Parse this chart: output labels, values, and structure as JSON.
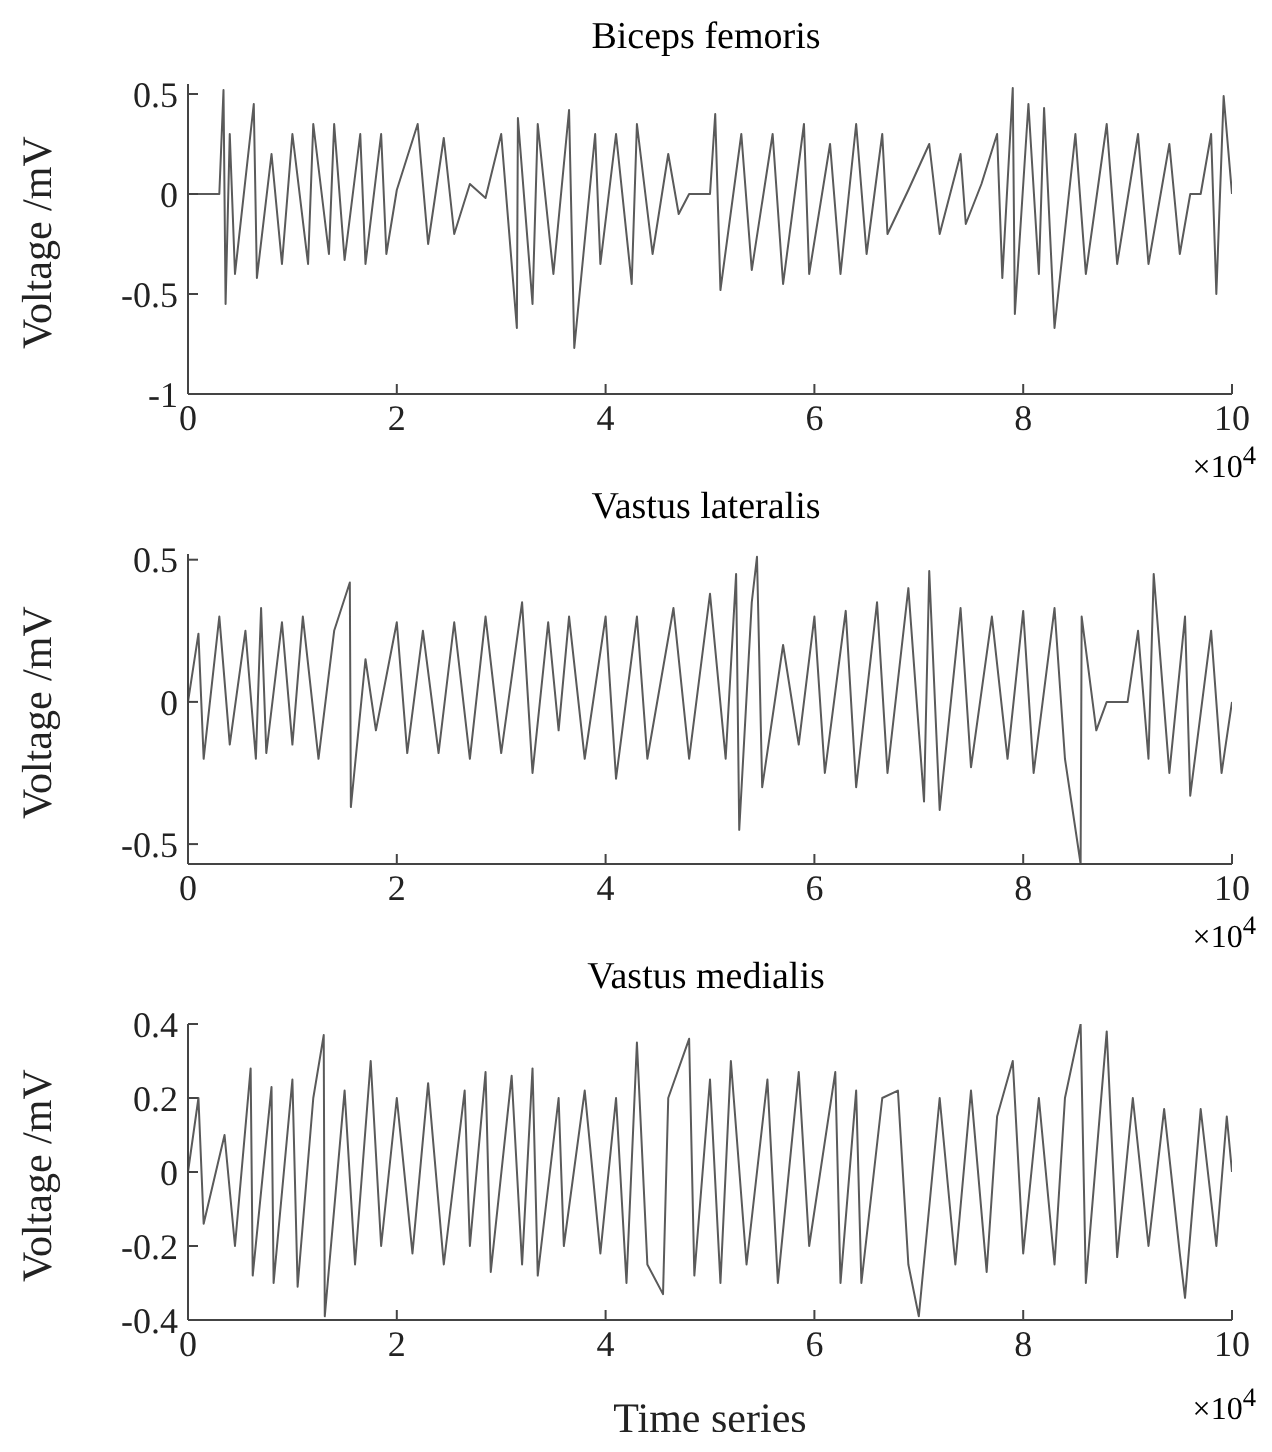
{
  "chart_data": [
    {
      "type": "line",
      "title": "Biceps femoris",
      "ylabel": "Voltage /mV",
      "color": "#5a5a5a",
      "marker": "none",
      "line_style": "solid",
      "grid": false,
      "legend": false,
      "xlim": [
        0,
        10
      ],
      "xticks": [
        0,
        2,
        4,
        6,
        8,
        10
      ],
      "ylim": [
        -1,
        0.55
      ],
      "yticks": [
        -1,
        -0.5,
        0,
        0.5
      ],
      "annotations": [
        "×10$^{4}$"
      ],
      "x": [
        0,
        0.3,
        0.34,
        0.36,
        0.4,
        0.45,
        0.63,
        0.66,
        0.8,
        0.9,
        1,
        1.15,
        1.2,
        1.35,
        1.4,
        1.5,
        1.65,
        1.7,
        1.85,
        1.9,
        2,
        2.2,
        2.3,
        2.45,
        2.55,
        2.7,
        2.85,
        3,
        3.15,
        3.16,
        3.3,
        3.35,
        3.5,
        3.65,
        3.7,
        3.9,
        3.95,
        4.1,
        4.25,
        4.3,
        4.45,
        4.6,
        4.7,
        4.8,
        5,
        5.05,
        5.1,
        5.3,
        5.4,
        5.6,
        5.7,
        5.9,
        5.95,
        6.15,
        6.25,
        6.4,
        6.5,
        6.65,
        6.7,
        6.9,
        7.1,
        7.2,
        7.4,
        7.45,
        7.6,
        7.75,
        7.8,
        7.9,
        7.92,
        8.05,
        8.15,
        8.2,
        8.3,
        8.5,
        8.6,
        8.8,
        8.9,
        9.1,
        9.2,
        9.4,
        9.5,
        9.6,
        9.7,
        9.8,
        9.85,
        9.92,
        10
      ],
      "values": [
        0,
        0,
        0.52,
        -0.55,
        0.3,
        -0.4,
        0.45,
        -0.42,
        0.2,
        -0.35,
        0.3,
        -0.35,
        0.35,
        -0.3,
        0.35,
        -0.33,
        0.3,
        -0.35,
        0.3,
        -0.3,
        0.02,
        0.35,
        -0.25,
        0.28,
        -0.2,
        0.05,
        -0.02,
        0.3,
        -0.67,
        0.38,
        -0.55,
        0.35,
        -0.4,
        0.42,
        -0.77,
        0.3,
        -0.35,
        0.3,
        -0.45,
        0.35,
        -0.3,
        0.2,
        -0.1,
        0,
        0,
        0.4,
        -0.48,
        0.3,
        -0.38,
        0.3,
        -0.45,
        0.35,
        -0.4,
        0.25,
        -0.4,
        0.35,
        -0.3,
        0.3,
        -0.2,
        0.02,
        0.25,
        -0.2,
        0.2,
        -0.15,
        0.05,
        0.3,
        -0.42,
        0.53,
        -0.6,
        0.45,
        -0.4,
        0.43,
        -0.67,
        0.3,
        -0.4,
        0.35,
        -0.35,
        0.3,
        -0.35,
        0.25,
        -0.3,
        0,
        0,
        0.3,
        -0.5,
        0.49,
        0
      ]
    },
    {
      "type": "line",
      "title": "Vastus lateralis",
      "ylabel": "Voltage /mV",
      "color": "#5a5a5a",
      "marker": "none",
      "line_style": "solid",
      "grid": false,
      "legend": false,
      "xlim": [
        0,
        10
      ],
      "xticks": [
        0,
        2,
        4,
        6,
        8,
        10
      ],
      "ylim": [
        -0.57,
        0.52
      ],
      "yticks": [
        -0.5,
        0,
        0.5
      ],
      "annotations": [
        "×10$^{4}$"
      ],
      "x": [
        0,
        0.1,
        0.15,
        0.3,
        0.4,
        0.55,
        0.65,
        0.7,
        0.75,
        0.9,
        1,
        1.1,
        1.25,
        1.4,
        1.55,
        1.56,
        1.7,
        1.8,
        2,
        2.1,
        2.25,
        2.4,
        2.55,
        2.7,
        2.85,
        3,
        3.2,
        3.3,
        3.45,
        3.55,
        3.65,
        3.8,
        4,
        4.1,
        4.3,
        4.4,
        4.65,
        4.8,
        5,
        5.15,
        5.25,
        5.28,
        5.4,
        5.45,
        5.5,
        5.7,
        5.85,
        6,
        6.1,
        6.3,
        6.4,
        6.6,
        6.7,
        6.9,
        7.05,
        7.1,
        7.2,
        7.4,
        7.5,
        7.7,
        7.85,
        8,
        8.1,
        8.3,
        8.4,
        8.55,
        8.56,
        8.7,
        8.8,
        9,
        9.1,
        9.2,
        9.25,
        9.4,
        9.55,
        9.6,
        9.8,
        9.9,
        10
      ],
      "values": [
        0,
        0.24,
        -0.2,
        0.3,
        -0.15,
        0.25,
        -0.2,
        0.33,
        -0.18,
        0.28,
        -0.15,
        0.3,
        -0.2,
        0.25,
        0.42,
        -0.37,
        0.15,
        -0.1,
        0.28,
        -0.18,
        0.25,
        -0.18,
        0.28,
        -0.2,
        0.3,
        -0.18,
        0.35,
        -0.25,
        0.28,
        -0.1,
        0.3,
        -0.2,
        0.3,
        -0.27,
        0.3,
        -0.2,
        0.33,
        -0.2,
        0.38,
        -0.2,
        0.45,
        -0.45,
        0.35,
        0.51,
        -0.3,
        0.2,
        -0.15,
        0.3,
        -0.25,
        0.32,
        -0.3,
        0.35,
        -0.25,
        0.4,
        -0.35,
        0.46,
        -0.38,
        0.33,
        -0.23,
        0.3,
        -0.2,
        0.32,
        -0.25,
        0.33,
        -0.2,
        -0.57,
        0.3,
        -0.1,
        0,
        0,
        0.25,
        -0.2,
        0.45,
        -0.25,
        0.3,
        -0.33,
        0.25,
        -0.25,
        0
      ]
    },
    {
      "type": "line",
      "title": "Vastus medialis",
      "ylabel": "Voltage /mV",
      "xlabel": "Time series",
      "color": "#5a5a5a",
      "marker": "none",
      "line_style": "solid",
      "grid": false,
      "legend": false,
      "xlim": [
        0,
        10
      ],
      "xticks": [
        0,
        2,
        4,
        6,
        8,
        10
      ],
      "ylim": [
        -0.4,
        0.4
      ],
      "yticks": [
        -0.4,
        -0.2,
        0,
        0.2,
        0.4
      ],
      "annotations": [
        "×10$^{4}$"
      ],
      "x": [
        0,
        0.1,
        0.15,
        0.35,
        0.45,
        0.6,
        0.62,
        0.8,
        0.82,
        1,
        1.05,
        1.2,
        1.3,
        1.31,
        1.5,
        1.6,
        1.75,
        1.85,
        2,
        2.15,
        2.3,
        2.45,
        2.65,
        2.7,
        2.85,
        2.9,
        3.1,
        3.2,
        3.3,
        3.35,
        3.55,
        3.6,
        3.8,
        3.95,
        4.1,
        4.2,
        4.3,
        4.4,
        4.55,
        4.6,
        4.8,
        4.85,
        5,
        5.1,
        5.2,
        5.35,
        5.55,
        5.65,
        5.85,
        5.95,
        6.2,
        6.25,
        6.4,
        6.45,
        6.65,
        6.8,
        6.9,
        7,
        7.2,
        7.35,
        7.5,
        7.65,
        7.75,
        7.9,
        8,
        8.15,
        8.3,
        8.4,
        8.55,
        8.6,
        8.8,
        8.9,
        9.05,
        9.2,
        9.35,
        9.5,
        9.55,
        9.7,
        9.85,
        9.95,
        10
      ],
      "values": [
        0,
        0.2,
        -0.14,
        0.1,
        -0.2,
        0.28,
        -0.28,
        0.23,
        -0.3,
        0.25,
        -0.31,
        0.2,
        0.37,
        -0.39,
        0.22,
        -0.25,
        0.3,
        -0.2,
        0.2,
        -0.22,
        0.24,
        -0.25,
        0.22,
        -0.2,
        0.27,
        -0.27,
        0.26,
        -0.25,
        0.28,
        -0.28,
        0.2,
        -0.2,
        0.22,
        -0.22,
        0.2,
        -0.3,
        0.35,
        -0.25,
        -0.33,
        0.2,
        0.36,
        -0.28,
        0.25,
        -0.3,
        0.3,
        -0.25,
        0.25,
        -0.3,
        0.27,
        -0.2,
        0.27,
        -0.3,
        0.22,
        -0.3,
        0.2,
        0.22,
        -0.25,
        -0.39,
        0.2,
        -0.25,
        0.22,
        -0.27,
        0.15,
        0.3,
        -0.22,
        0.2,
        -0.25,
        0.2,
        0.4,
        -0.3,
        0.38,
        -0.23,
        0.2,
        -0.2,
        0.17,
        -0.22,
        -0.34,
        0.17,
        -0.2,
        0.15,
        0
      ]
    }
  ]
}
